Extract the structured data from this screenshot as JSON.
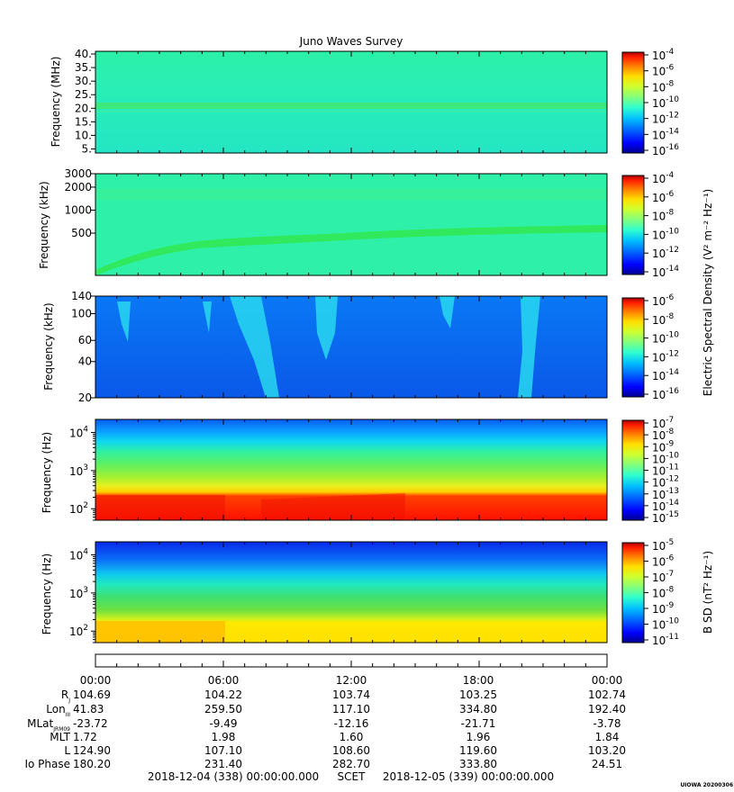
{
  "figure": {
    "title": "Juno Waves Survey",
    "watermark": "UIOWA 20200306"
  },
  "colors": {
    "jet": [
      "#00008f",
      "#0000ff",
      "#0060ff",
      "#00bfff",
      "#2fffcf",
      "#7fff7f",
      "#cfff2f",
      "#ffdf00",
      "#ff8000",
      "#ff2000",
      "#b00000"
    ],
    "panel1_bg": "#29f0b4",
    "panel2_bg": "#2ff0a8",
    "panel3_bg": "#0a6cf0",
    "panel4_top": "#0a7cf5",
    "panel5_top": "#0a60f0"
  },
  "chart_data": [
    {
      "type": "heatmap",
      "id": "p1",
      "ylabel": "Frequency (MHz)",
      "yscale": "linear",
      "ylim": [
        3.5,
        41
      ],
      "yticks": [
        {
          "v": 40,
          "label": "40."
        },
        {
          "v": 35,
          "label": "35."
        },
        {
          "v": 30,
          "label": "30."
        },
        {
          "v": 25,
          "label": "25."
        },
        {
          "v": 20,
          "label": "20."
        },
        {
          "v": 15,
          "label": "15."
        },
        {
          "v": 10,
          "label": "10."
        },
        {
          "v": 5,
          "label": "5."
        }
      ],
      "colorbar": {
        "label": "",
        "exponents": [
          -4,
          -6,
          -8,
          -10,
          -12,
          -14,
          -16
        ]
      }
    },
    {
      "type": "heatmap",
      "id": "p2",
      "ylabel": "Frequency (kHz)",
      "yscale": "log",
      "ylim": [
        140,
        3000
      ],
      "yticks": [
        {
          "v": 3000,
          "label": "3000"
        },
        {
          "v": 2000,
          "label": "2000"
        },
        {
          "v": 1000,
          "label": "1000"
        },
        {
          "v": 500,
          "label": "500"
        }
      ],
      "colorbar": {
        "label": "",
        "exponents": [
          -4,
          -6,
          -8,
          -10,
          -12,
          -14
        ]
      }
    },
    {
      "type": "heatmap",
      "id": "p3",
      "ylabel": "Frequency (kHz)",
      "yscale": "log",
      "ylim": [
        20,
        140
      ],
      "yticks": [
        {
          "v": 140,
          "label": "140"
        },
        {
          "v": 100,
          "label": "100"
        },
        {
          "v": 60,
          "label": "60"
        },
        {
          "v": 40,
          "label": "40"
        },
        {
          "v": 20,
          "label": "20"
        }
      ],
      "colorbar": {
        "label": "",
        "exponents": [
          -6,
          -8,
          -10,
          -12,
          -14,
          -16
        ]
      }
    },
    {
      "type": "heatmap",
      "id": "p4",
      "ylabel": "Frequency (Hz)",
      "yscale": "log",
      "ylim": [
        50,
        22000
      ],
      "yticks": [
        {
          "v": 10000,
          "exp": 4
        },
        {
          "v": 1000,
          "exp": 3
        },
        {
          "v": 100,
          "exp": 2
        }
      ],
      "colorbar": {
        "label": "",
        "exponents": [
          -7,
          -8,
          -9,
          -10,
          -11,
          -12,
          -13,
          -14,
          -15
        ]
      }
    },
    {
      "type": "heatmap",
      "id": "p5",
      "ylabel": "Frequency (Hz)",
      "yscale": "log",
      "ylim": [
        50,
        22000
      ],
      "yticks": [
        {
          "v": 10000,
          "exp": 4
        },
        {
          "v": 1000,
          "exp": 3
        },
        {
          "v": 100,
          "exp": 2
        }
      ],
      "colorbar": {
        "label": "B SD (nT² Hz⁻¹)",
        "exponents": [
          -5,
          -6,
          -7,
          -8,
          -9,
          -10,
          -11
        ]
      }
    }
  ],
  "shared_colorbar_label": "Electric Spectral Density (V² m⁻² Hz⁻¹)",
  "time_axis": {
    "ticks": [
      "00:00",
      "06:00",
      "12:00",
      "18:00",
      "00:00"
    ],
    "ephemeris": [
      {
        "label": "R",
        "sub": "J",
        "values": [
          "104.69",
          "104.22",
          "103.74",
          "103.25",
          "102.74"
        ]
      },
      {
        "label": "Lon",
        "sub": "III",
        "values": [
          "41.83",
          "259.50",
          "117.10",
          "334.80",
          "192.40"
        ]
      },
      {
        "label": "MLat",
        "sub": "JRM09",
        "values": [
          "-23.72",
          "-9.49",
          "-12.16",
          "-21.71",
          "-3.78"
        ]
      },
      {
        "label": "MLT",
        "sub": "",
        "values": [
          "1.72",
          "1.98",
          "1.60",
          "1.96",
          "1.84"
        ]
      },
      {
        "label": "L",
        "sub": "",
        "values": [
          "124.90",
          "107.10",
          "108.60",
          "119.60",
          "103.20"
        ]
      },
      {
        "label": "Io Phase",
        "sub": "",
        "values": [
          "180.20",
          "231.40",
          "282.70",
          "333.80",
          "24.51"
        ]
      }
    ],
    "range_start": "2018-12-04 (338) 00:00:00.000",
    "range_label": "SCET",
    "range_end": "2018-12-05 (339) 00:00:00.000"
  }
}
